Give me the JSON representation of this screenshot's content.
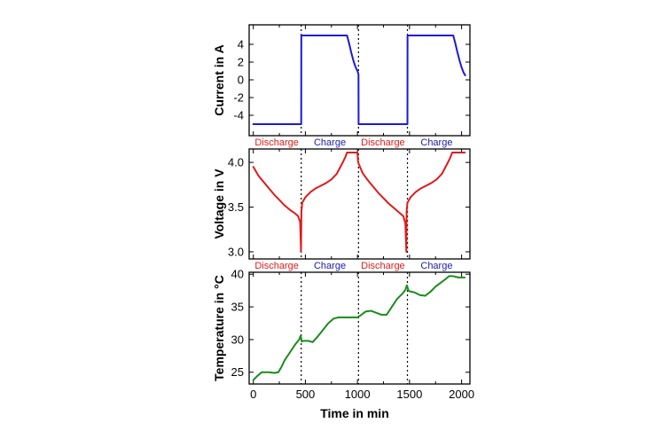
{
  "colors": {
    "current": "#1a1adb",
    "voltage": "#e01a1a",
    "temperature": "#1a8c1a",
    "discharge": "#e01a1a",
    "charge": "#1a1aaa"
  },
  "chart_data": [
    {
      "type": "line",
      "id": "current",
      "ylabel": "Current in A",
      "ylim": [
        -6.3,
        6.2
      ],
      "yticks": [
        -4,
        -2,
        0,
        2,
        4
      ],
      "ytick_labels": [
        "-4",
        "-2",
        "0",
        "2",
        "4"
      ],
      "xlim": [
        -40,
        2080
      ],
      "series": [
        {
          "name": "Current",
          "color": "#1a1adb",
          "x": [
            0,
            460,
            461,
            900,
            920,
            940,
            960,
            980,
            1000,
            1010,
            1011,
            1480,
            1481,
            1920,
            1940,
            1960,
            1980,
            2000,
            2020,
            2035
          ],
          "y": [
            -5.0,
            -5.0,
            5.0,
            5.0,
            4.1,
            3.1,
            2.2,
            1.5,
            1.0,
            0.6,
            -5.0,
            -5.0,
            5.0,
            5.0,
            4.1,
            3.1,
            2.2,
            1.4,
            0.8,
            0.5
          ]
        }
      ],
      "phase_labels": [
        {
          "text": "Discharge",
          "kind": "discharge",
          "xc": 225
        },
        {
          "text": "Charge",
          "kind": "charge",
          "xc": 735
        },
        {
          "text": "Discharge",
          "kind": "discharge",
          "xc": 1245
        },
        {
          "text": "Charge",
          "kind": "charge",
          "xc": 1760
        }
      ]
    },
    {
      "type": "line",
      "id": "voltage",
      "ylabel": "Voltage in V",
      "ylim": [
        2.92,
        4.15
      ],
      "yticks": [
        3.0,
        3.5,
        4.0
      ],
      "ytick_labels": [
        "3.0",
        "3.5",
        "4.0"
      ],
      "xlim": [
        -40,
        2080
      ],
      "series": [
        {
          "name": "Voltage",
          "color": "#e01a1a",
          "x": [
            0,
            50,
            100,
            150,
            200,
            250,
            300,
            350,
            400,
            430,
            450,
            458,
            462,
            470,
            500,
            550,
            600,
            650,
            700,
            750,
            800,
            850,
            880,
            900,
            1000,
            1005,
            1010,
            1050,
            1100,
            1150,
            1200,
            1250,
            1300,
            1350,
            1400,
            1440,
            1460,
            1470,
            1472,
            1480,
            1510,
            1560,
            1610,
            1660,
            1710,
            1760,
            1810,
            1860,
            1890,
            1910,
            2030
          ],
          "y": [
            3.95,
            3.85,
            3.78,
            3.71,
            3.64,
            3.58,
            3.52,
            3.47,
            3.43,
            3.4,
            3.33,
            3.0,
            3.45,
            3.55,
            3.61,
            3.67,
            3.71,
            3.74,
            3.77,
            3.81,
            3.87,
            3.98,
            4.05,
            4.11,
            4.11,
            4.02,
            3.99,
            3.88,
            3.8,
            3.73,
            3.66,
            3.6,
            3.54,
            3.49,
            3.44,
            3.4,
            3.32,
            3.0,
            3.45,
            3.55,
            3.61,
            3.67,
            3.71,
            3.74,
            3.77,
            3.81,
            3.87,
            3.98,
            4.05,
            4.11,
            4.11
          ]
        }
      ],
      "phase_labels": [
        {
          "text": "Discharge",
          "kind": "discharge",
          "xc": 225
        },
        {
          "text": "Charge",
          "kind": "charge",
          "xc": 735
        },
        {
          "text": "Discharge",
          "kind": "discharge",
          "xc": 1245
        },
        {
          "text": "Charge",
          "kind": "charge",
          "xc": 1760
        }
      ]
    },
    {
      "type": "line",
      "id": "temperature",
      "ylabel": "Temperature in °C",
      "xlabel": "Time in min",
      "ylim": [
        23.2,
        40.3
      ],
      "yticks": [
        25,
        30,
        35,
        40
      ],
      "ytick_labels": [
        "25",
        "30",
        "35",
        "40"
      ],
      "xlim": [
        -40,
        2080
      ],
      "xticks": [
        0,
        500,
        1000,
        1500,
        2000
      ],
      "xtick_labels": [
        "0",
        "500",
        "1000",
        "1500",
        "2000"
      ],
      "series": [
        {
          "name": "Temperature",
          "color": "#1a8c1a",
          "x": [
            0,
            30,
            80,
            150,
            200,
            240,
            270,
            300,
            350,
            400,
            440,
            455,
            465,
            480,
            530,
            570,
            620,
            670,
            720,
            770,
            820,
            880,
            900,
            1000,
            1030,
            1080,
            1130,
            1180,
            1230,
            1280,
            1330,
            1380,
            1430,
            1460,
            1475,
            1490,
            1500,
            1550,
            1600,
            1650,
            1700,
            1750,
            1800,
            1850,
            1880,
            1920,
            1970,
            2030
          ],
          "y": [
            23.8,
            24.3,
            25.0,
            25.0,
            24.9,
            25.0,
            25.8,
            26.8,
            28.0,
            29.2,
            30.0,
            30.6,
            29.7,
            29.8,
            29.8,
            29.6,
            30.5,
            31.5,
            32.5,
            33.2,
            33.4,
            33.4,
            33.4,
            33.4,
            33.7,
            34.3,
            34.4,
            34.1,
            33.8,
            33.8,
            35.0,
            36.2,
            37.0,
            37.6,
            38.3,
            37.5,
            37.4,
            37.2,
            36.8,
            36.7,
            37.3,
            38.1,
            38.7,
            39.3,
            39.7,
            39.7,
            39.5,
            39.5
          ]
        }
      ]
    }
  ],
  "phase_boundaries": [
    460,
    1010,
    1480
  ]
}
